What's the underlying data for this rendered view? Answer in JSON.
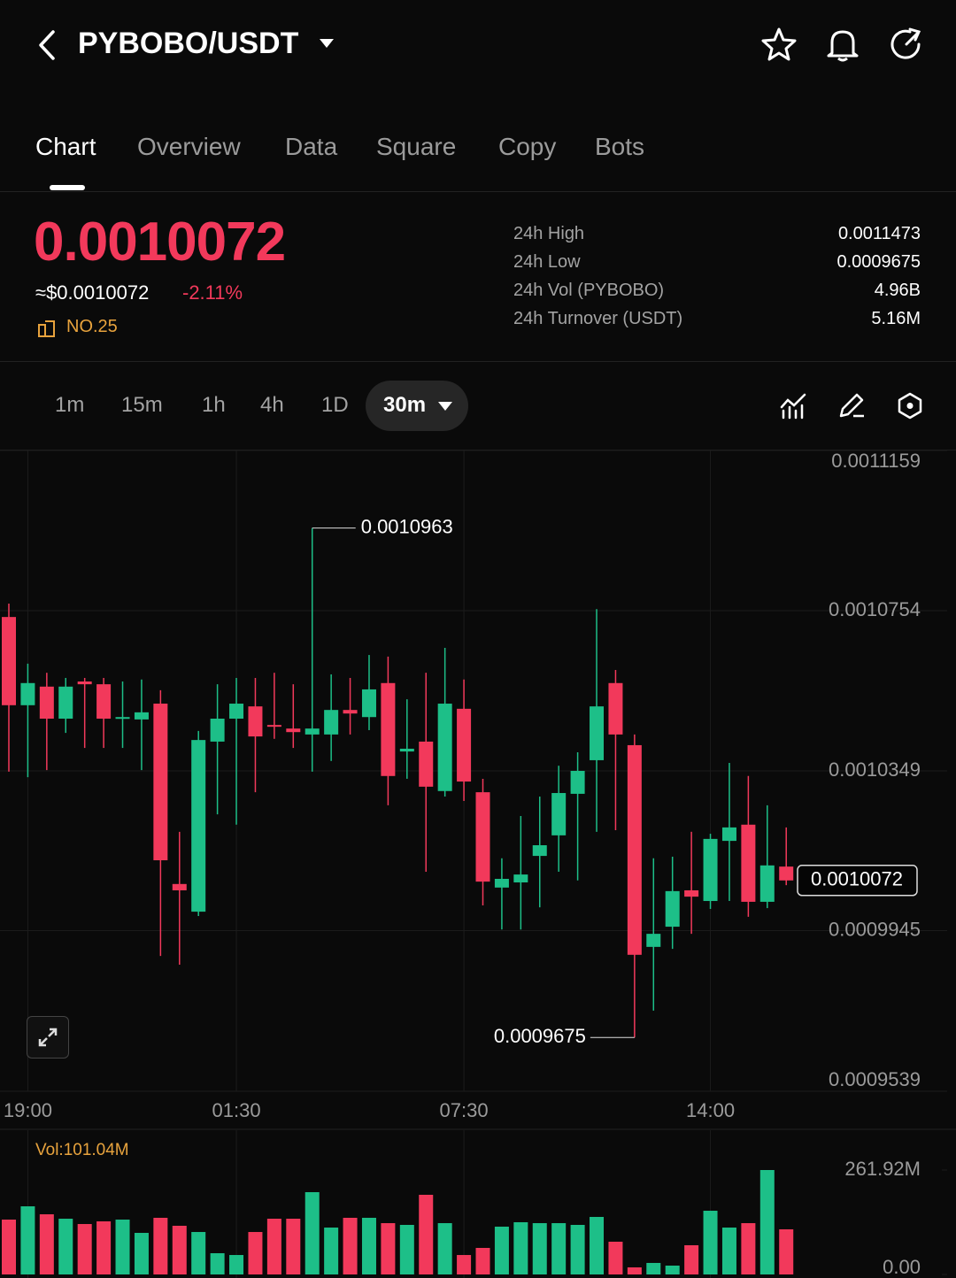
{
  "header": {
    "pair": "PYBOBO/USDT"
  },
  "tabs": [
    "Chart",
    "Overview",
    "Data",
    "Square",
    "Copy",
    "Bots"
  ],
  "ticker": {
    "price": "0.0010072",
    "usd_price": "≈$0.0010072",
    "change": "-2.11%",
    "rank": "NO.25",
    "stats": [
      {
        "label": "24h High",
        "value": "0.0011473"
      },
      {
        "label": "24h Low",
        "value": "0.0009675"
      },
      {
        "label": "24h Vol (PYBOBO)",
        "value": "4.96B"
      },
      {
        "label": "24h Turnover (USDT)",
        "value": "5.16M"
      }
    ]
  },
  "intervals": [
    "1m",
    "15m",
    "1h",
    "4h",
    "1D",
    "30m"
  ],
  "chart_data": [
    {
      "type": "candlestick",
      "categories": [
        null,
        "19:00",
        null,
        null,
        null,
        null,
        null,
        null,
        null,
        null,
        null,
        null,
        "01:30",
        null,
        null,
        null,
        null,
        null,
        null,
        null,
        null,
        null,
        null,
        null,
        "07:30",
        null,
        null,
        null,
        null,
        null,
        null,
        null,
        null,
        null,
        null,
        null,
        null,
        "14:00",
        null,
        null,
        null,
        null
      ],
      "open": [
        0.0010738,
        0.0010515,
        0.0010562,
        0.0010481,
        0.0010575,
        0.0010568,
        0.0010481,
        0.0010479,
        0.0010519,
        0.0010063,
        0.0009993,
        0.0010423,
        0.0010481,
        0.0010512,
        0.0010465,
        0.0010456,
        0.0010441,
        0.0010441,
        0.0010503,
        0.0010485,
        0.0010571,
        0.0010398,
        0.0010423,
        0.0010298,
        0.0010506,
        0.0010295,
        0.0010054,
        0.0010067,
        0.0010134,
        0.0010186,
        0.0010291,
        0.0010376,
        0.0010571,
        0.0010414,
        0.0009904,
        0.0009955,
        0.0010047,
        0.001002,
        0.0010172,
        0.0010213,
        0.0010018,
        0.0010107
      ],
      "high": [
        0.0010772,
        0.001062,
        0.0010597,
        0.0010584,
        0.0010584,
        0.0010584,
        0.0010575,
        0.001058,
        0.0010553,
        0.0010195,
        0.001045,
        0.0010568,
        0.0010584,
        0.0010584,
        0.0010597,
        0.0010568,
        0.0010963,
        0.0010593,
        0.0010584,
        0.0010642,
        0.0010638,
        0.001053,
        0.0010597,
        0.001066,
        0.001058,
        0.0010329,
        0.0010128,
        0.0010235,
        0.0010284,
        0.0010362,
        0.0010396,
        0.0010758,
        0.0010604,
        0.0010441,
        0.0010128,
        0.0010132,
        0.0010195,
        0.001019,
        0.0010369,
        0.0010336,
        0.0010262,
        0.0010206
      ],
      "low": [
        0.0010347,
        0.0010333,
        0.0010351,
        0.0010445,
        0.0010407,
        0.0010407,
        0.0010407,
        0.0010351,
        0.0009881,
        0.0009859,
        0.0009982,
        0.0010239,
        0.0010213,
        0.0010295,
        0.001043,
        0.0010407,
        0.0010347,
        0.0010374,
        0.0010441,
        0.0010452,
        0.0010262,
        0.0010329,
        0.0010094,
        0.0010284,
        0.0010273,
        0.0010009,
        0.0009948,
        0.0009948,
        0.0010004,
        0.0010094,
        0.0010072,
        0.0010195,
        0.0010199,
        0.0009675,
        0.0009743,
        0.0009899,
        0.0009937,
        0.001,
        0.001002,
        0.000998,
        0.0010002,
        0.001006
      ],
      "close": [
        0.0010515,
        0.0010571,
        0.0010481,
        0.0010562,
        0.0010568,
        0.0010481,
        0.0010485,
        0.0010497,
        0.0010123,
        0.0010047,
        0.0010427,
        0.0010481,
        0.0010519,
        0.0010436,
        0.0010461,
        0.0010447,
        0.0010456,
        0.0010503,
        0.0010494,
        0.0010555,
        0.0010336,
        0.0010405,
        0.0010309,
        0.0010519,
        0.0010322,
        0.0010069,
        0.0010076,
        0.0010087,
        0.0010161,
        0.0010293,
        0.0010349,
        0.0010512,
        0.0010441,
        0.0009884,
        0.0009937,
        0.0010045,
        0.0010031,
        0.0010177,
        0.0010206,
        0.0010018,
        0.001011,
        0.0010072
      ],
      "ylim": [
        0.0009539,
        0.0011159
      ],
      "yticks": [
        0.0011159,
        0.0010754,
        0.0010349,
        0.0009945,
        0.0009539
      ],
      "grid": true,
      "up_color": "#1dbf88",
      "down_color": "#f2395b"
    },
    {
      "type": "bar",
      "title": "Vol:101.04M",
      "values": [
        137.6,
        170.9,
        150.9,
        139.8,
        126.5,
        133.2,
        137.6,
        104.3,
        142.1,
        122.1,
        106.5,
        53.3,
        48.8,
        106.5,
        139.8,
        139.8,
        206.4,
        117.6,
        142.1,
        142.1,
        128.7,
        124.3,
        199.8,
        128.7,
        48.8,
        66.6,
        119.9,
        131,
        128.7,
        128.7,
        124.3,
        144.3,
        82.1,
        17.8,
        28.9,
        22.2,
        73.3,
        159.8,
        117.6,
        128.7,
        261.92,
        113.2
      ],
      "ylim": [
        0,
        261.92
      ],
      "yticks": [
        {
          "value": 261.92,
          "label": "261.92M"
        },
        {
          "value": 0,
          "label": "0.00"
        }
      ]
    }
  ]
}
